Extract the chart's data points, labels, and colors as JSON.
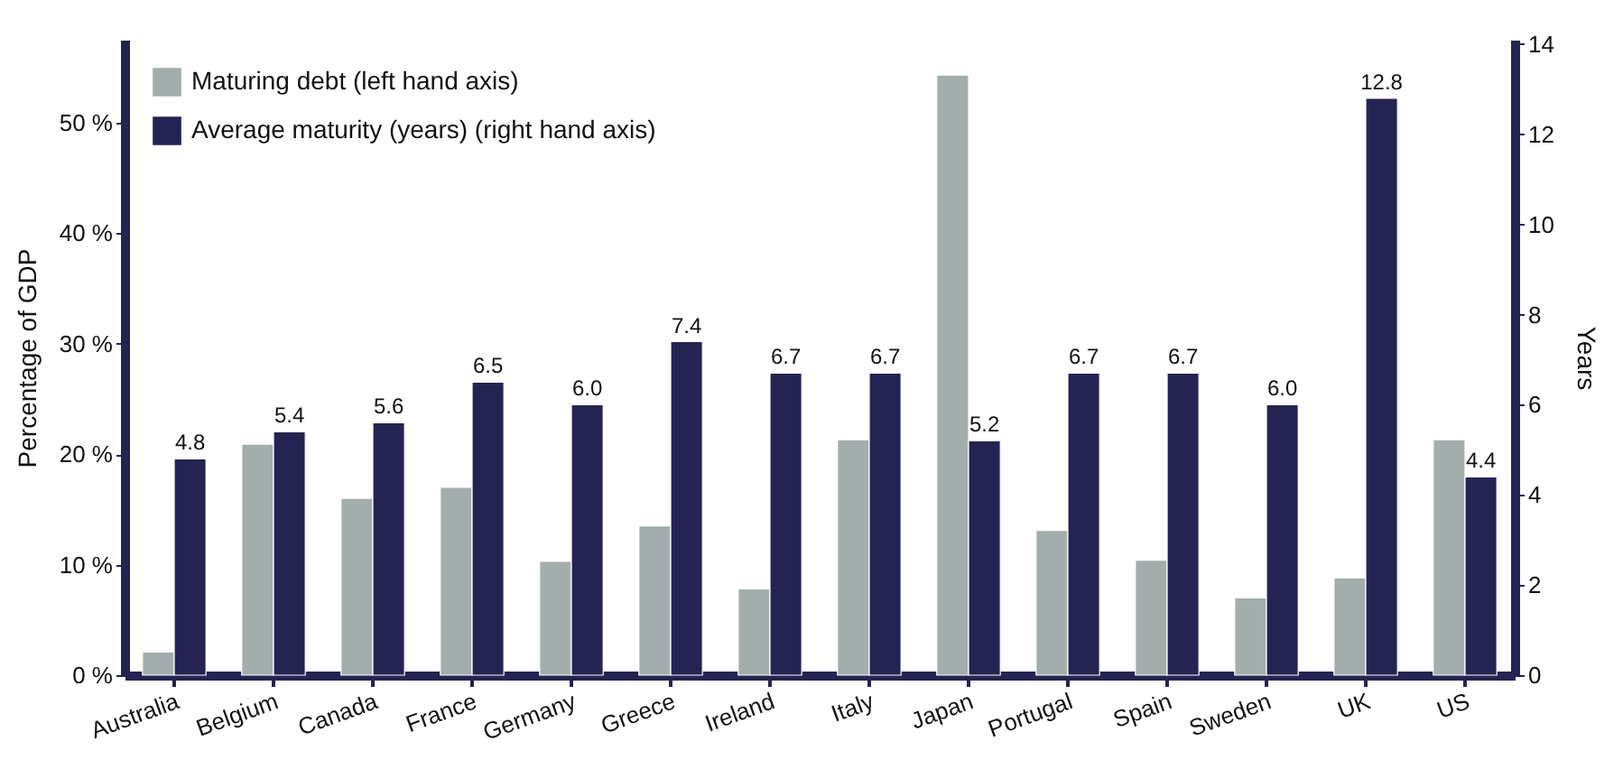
{
  "chart_data": {
    "type": "bar",
    "ylabel": "Percentage of GDP",
    "y2label": "Years",
    "categories": [
      "Australia",
      "Belgium",
      "Canada",
      "France",
      "Germany",
      "Greece",
      "Ireland",
      "Italy",
      "Japan",
      "Portugal",
      "Spain",
      "Sweden",
      "UK",
      "US"
    ],
    "series": [
      {
        "name": "Maturing debt (left hand axis)",
        "color": "#a3adac",
        "values": [
          2.1,
          20.9,
          16.0,
          17.0,
          10.3,
          13.5,
          7.8,
          21.3,
          54.3,
          13.1,
          10.4,
          7.0,
          8.8,
          21.3
        ]
      },
      {
        "name": "Average maturity (years) (right hand axis)",
        "color": "#252351",
        "axis": "y2",
        "values": [
          4.8,
          5.4,
          5.6,
          6.5,
          6.0,
          7.4,
          6.7,
          6.7,
          5.2,
          6.7,
          6.7,
          6.0,
          12.8,
          4.4
        ],
        "value_labels": [
          "4.8",
          "5.4",
          "5.6",
          "6.5",
          "6.0",
          "7.4",
          "6.7",
          "6.7",
          "5.2",
          "6.7",
          "6.7",
          "6.0",
          "12.8",
          "4.4"
        ]
      }
    ],
    "ylim": [
      0,
      57.5
    ],
    "yticks": [
      {
        "value": 0,
        "label": "0 %"
      },
      {
        "value": 10,
        "label": "10 %"
      },
      {
        "value": 20,
        "label": "20 %"
      },
      {
        "value": 30,
        "label": "30 %"
      },
      {
        "value": 40,
        "label": "40 %"
      },
      {
        "value": 50,
        "label": "50 %"
      }
    ],
    "y2lim": [
      0,
      14.1
    ],
    "y2ticks": [
      0,
      2,
      4,
      6,
      8,
      10,
      12,
      14
    ],
    "legend": "top left",
    "grid": false
  }
}
